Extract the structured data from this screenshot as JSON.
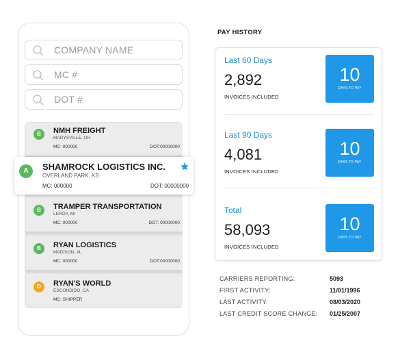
{
  "search": [
    {
      "placeholder": "COMPANY NAME"
    },
    {
      "placeholder": "MC #"
    },
    {
      "placeholder": "DOT #"
    }
  ],
  "companies": [
    {
      "avatar": "B",
      "name": "NMH FREIGHT",
      "location": "MARYSVILLE, OH",
      "mc": "MC: 000000",
      "dot": "DOT:00000000",
      "avatar_color": "#5cb85c"
    },
    {
      "avatar": "A",
      "name": "SHAMROCK LOGISTICS INC.",
      "location": "OVERLAND PARK, KS",
      "mc": "MC: 000000",
      "dot": "DOT: 00000000",
      "avatar_color": "#5cb85c",
      "starred": true
    },
    {
      "avatar": "B",
      "name": "TRAMPER TRANSPORTATION",
      "location": "LEROY, MI",
      "mc": "MC: 000000",
      "dot": "DOT: 00000000",
      "avatar_color": "#5cb85c"
    },
    {
      "avatar": "B",
      "name": "RYAN LOGISTICS",
      "location": "MADISON, AL",
      "mc": "MC: 000000",
      "dot": "DOT:00000000",
      "avatar_color": "#5cb85c"
    },
    {
      "avatar": "D",
      "name": "RYAN'S WORLD",
      "location": "ESCONDIDO, CA",
      "mc": "MC: SHIPPER",
      "dot": "",
      "avatar_color": "#f0a91a"
    }
  ],
  "pay_history": {
    "title": "PAY HISTORY",
    "periods": [
      {
        "label": "Last 60 Days",
        "amount": "2,892",
        "invoices": "INVOICES INCLUDED",
        "days": "10",
        "days_label": "DAYS TO PAY"
      },
      {
        "label": "Last 90 Days",
        "amount": "4,081",
        "invoices": "INVOICES INCLUDED",
        "days": "10",
        "days_label": "DAYS TO PAY"
      },
      {
        "label": "Total",
        "amount": "58,093",
        "invoices": "INVOICES INCLUDED",
        "days": "10",
        "days_label": "DAYS TO PAY"
      }
    ],
    "accent_color": "#1f98e8"
  },
  "stats": [
    {
      "label": "CARRIERS REPORTING:",
      "value": "5093"
    },
    {
      "label": "FIRST ACTIVITY:",
      "value": "11/01/1996"
    },
    {
      "label": "LAST ACTIVITY:",
      "value": "08/03/2020"
    },
    {
      "label": "LAST CREDIT SCORE CHANGE:",
      "value": "01/25/2007"
    }
  ]
}
